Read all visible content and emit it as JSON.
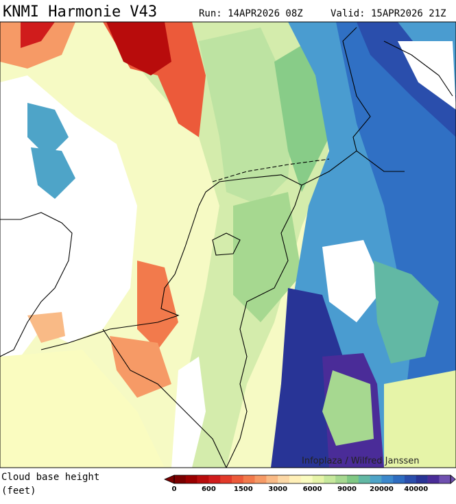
{
  "header": {
    "title": "KNMI Harmonie V43",
    "run": "Run: 14APR2026 08Z",
    "valid": "Valid: 15APR2026 21Z"
  },
  "map": {
    "credit": "Infoplaza / Wilfred Janssen"
  },
  "legend": {
    "title": "Cloud base height",
    "unit": "(feet)",
    "ticks": [
      0,
      600,
      1500,
      3000,
      6000,
      9000,
      20000,
      40000
    ],
    "colors": [
      "#7a0000",
      "#9a0000",
      "#b80c0c",
      "#d01c1c",
      "#e23a2a",
      "#ec5a3a",
      "#f27a4c",
      "#f69a66",
      "#f9ba86",
      "#fcd8a6",
      "#fff0b8",
      "#fafcc0",
      "#e6f4a8",
      "#c6e89c",
      "#a6d890",
      "#80c884",
      "#62b8a4",
      "#4ea4c8",
      "#3c88cc",
      "#2e6cc0",
      "#2a4eac",
      "#283496",
      "#4a2c98",
      "#7050b0"
    ]
  }
}
